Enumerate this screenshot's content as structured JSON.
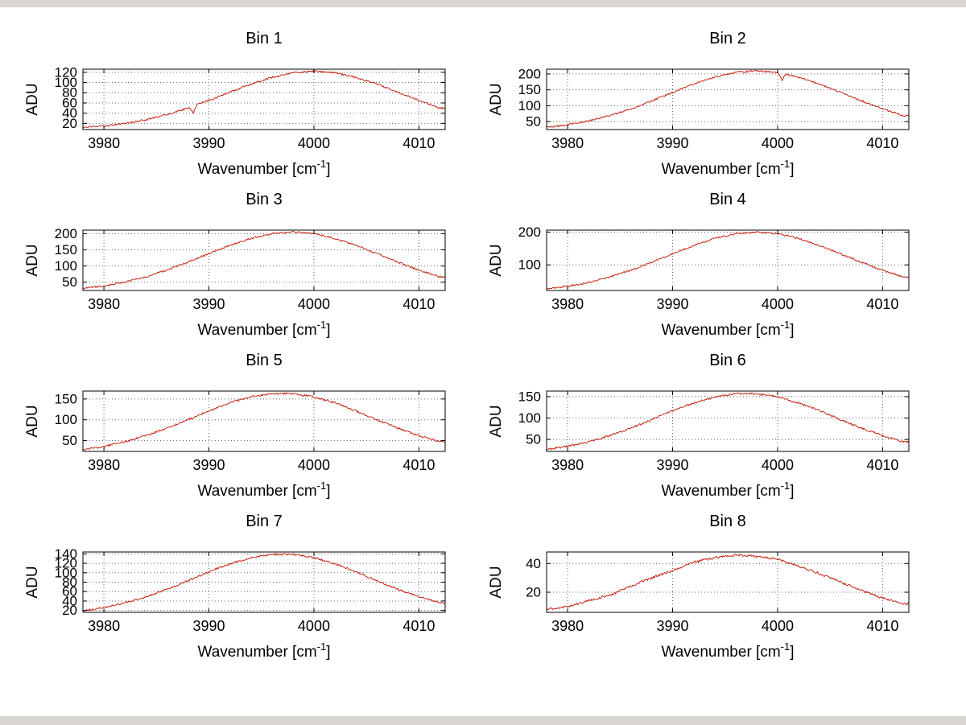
{
  "figure": {
    "background": "#ffffff",
    "chrome_color": "#d8d5d0",
    "grid_color": "#666666",
    "axis_color": "#000000"
  },
  "chart_data": [
    {
      "type": "line",
      "title": "Bin 1",
      "xlabel": "Wavenumber [cm^-1]",
      "ylabel": "ADU",
      "x": [
        3978,
        3980,
        3982,
        3984,
        3986,
        3988,
        3990,
        3992,
        3994,
        3996,
        3998,
        4000,
        4002,
        4004,
        4006,
        4008,
        4010,
        4012
      ],
      "y": [
        12,
        15,
        20,
        27,
        37,
        50,
        65,
        81,
        97,
        110,
        119,
        122,
        119,
        110,
        97,
        81,
        65,
        50
      ],
      "xlim": [
        3978,
        4012.5
      ],
      "ylim": [
        8,
        126
      ],
      "xticks": [
        3980,
        3990,
        4000,
        4010
      ],
      "yticks": [
        20,
        40,
        60,
        80,
        100,
        120
      ],
      "line_color": "#c41200",
      "grid": true,
      "noise_amp": 1.6,
      "spike": {
        "x": 3988.5,
        "depth": 13
      }
    },
    {
      "type": "line",
      "title": "Bin 2",
      "xlabel": "Wavenumber [cm^-1]",
      "ylabel": "ADU",
      "x": [
        3978,
        3980,
        3982,
        3984,
        3986,
        3988,
        3990,
        3992,
        3994,
        3996,
        3998,
        4000,
        4002,
        4004,
        4006,
        4008,
        4010,
        4012
      ],
      "y": [
        32,
        40,
        52,
        69,
        90,
        115,
        142,
        168,
        190,
        205,
        210,
        205,
        190,
        168,
        142,
        115,
        90,
        69
      ],
      "xlim": [
        3978,
        4012.5
      ],
      "ylim": [
        25,
        215
      ],
      "xticks": [
        3980,
        3990,
        4000,
        4010
      ],
      "yticks": [
        50,
        100,
        150,
        200
      ],
      "line_color": "#c41200",
      "grid": true,
      "noise_amp": 2.6,
      "spike": {
        "x": 4000.4,
        "depth": 22
      }
    },
    {
      "type": "line",
      "title": "Bin 3",
      "xlabel": "Wavenumber [cm^-1]",
      "ylabel": "ADU",
      "x": [
        3978,
        3980,
        3982,
        3984,
        3986,
        3988,
        3990,
        3992,
        3994,
        3996,
        3998,
        4000,
        4002,
        4004,
        4006,
        4008,
        4010,
        4012
      ],
      "y": [
        30,
        38,
        50,
        66,
        87,
        112,
        138,
        164,
        185,
        200,
        205,
        200,
        185,
        164,
        138,
        112,
        87,
        66
      ],
      "xlim": [
        3978,
        4012.5
      ],
      "ylim": [
        24,
        211
      ],
      "xticks": [
        3980,
        3990,
        4000,
        4010
      ],
      "yticks": [
        50,
        100,
        150,
        200
      ],
      "line_color": "#c41200",
      "grid": true,
      "noise_amp": 2.6,
      "spike": null
    },
    {
      "type": "line",
      "title": "Bin 4",
      "xlabel": "Wavenumber [cm^-1]",
      "ylabel": "ADU",
      "x": [
        3978,
        3980,
        3982,
        3984,
        3986,
        3988,
        3990,
        3992,
        3994,
        3996,
        3998,
        4000,
        4002,
        4004,
        4006,
        4008,
        4010,
        4012
      ],
      "y": [
        27,
        35,
        46,
        63,
        83,
        108,
        134,
        159,
        181,
        195,
        200,
        195,
        181,
        159,
        134,
        108,
        83,
        63
      ],
      "xlim": [
        3978,
        4012.5
      ],
      "ylim": [
        22,
        206
      ],
      "xticks": [
        3980,
        3990,
        4000,
        4010
      ],
      "yticks": [
        100,
        200
      ],
      "line_color": "#c41200",
      "grid": true,
      "noise_amp": 2.6,
      "spike": null
    },
    {
      "type": "line",
      "title": "Bin 5",
      "xlabel": "Wavenumber [cm^-1]",
      "ylabel": "ADU",
      "x": [
        3978,
        3980,
        3982,
        3984,
        3986,
        3988,
        3990,
        3992,
        3994,
        3996,
        3998,
        4000,
        4002,
        4004,
        4006,
        4008,
        4010,
        4012
      ],
      "y": [
        28,
        36,
        47,
        62,
        80,
        100,
        121,
        141,
        155,
        163,
        163,
        155,
        141,
        121,
        100,
        80,
        62,
        47
      ],
      "xlim": [
        3978,
        4012.5
      ],
      "ylim": [
        24,
        169
      ],
      "xticks": [
        3980,
        3990,
        4000,
        4010
      ],
      "yticks": [
        50,
        100,
        150
      ],
      "line_color": "#c41200",
      "grid": true,
      "noise_amp": 2.2,
      "spike": null
    },
    {
      "type": "line",
      "title": "Bin 6",
      "xlabel": "Wavenumber [cm^-1]",
      "ylabel": "ADU",
      "x": [
        3978,
        3980,
        3982,
        3984,
        3986,
        3988,
        3990,
        3992,
        3994,
        3996,
        3998,
        4000,
        4002,
        4004,
        4006,
        4008,
        4010,
        4012
      ],
      "y": [
        26,
        34,
        44,
        59,
        76,
        96,
        117,
        135,
        149,
        157,
        157,
        149,
        135,
        117,
        96,
        76,
        59,
        44
      ],
      "xlim": [
        3978,
        4012.5
      ],
      "ylim": [
        22,
        163
      ],
      "xticks": [
        3980,
        3990,
        4000,
        4010
      ],
      "yticks": [
        50,
        100,
        150
      ],
      "line_color": "#c41200",
      "grid": true,
      "noise_amp": 2.2,
      "spike": null
    },
    {
      "type": "line",
      "title": "Bin 7",
      "xlabel": "Wavenumber [cm^-1]",
      "ylabel": "ADU",
      "x": [
        3978,
        3980,
        3982,
        3984,
        3986,
        3988,
        3990,
        3992,
        3994,
        3996,
        3998,
        4000,
        4002,
        4004,
        4006,
        4008,
        4010,
        4012
      ],
      "y": [
        19,
        26,
        36,
        49,
        65,
        83,
        102,
        119,
        132,
        139,
        139,
        132,
        119,
        102,
        83,
        65,
        49,
        36
      ],
      "xlim": [
        3978,
        4012.5
      ],
      "ylim": [
        16,
        144
      ],
      "xticks": [
        3980,
        3990,
        4000,
        4010
      ],
      "yticks": [
        20,
        40,
        60,
        80,
        100,
        120,
        140
      ],
      "line_color": "#c41200",
      "grid": true,
      "noise_amp": 2.0,
      "spike": null
    },
    {
      "type": "line",
      "title": "Bin 8",
      "xlabel": "Wavenumber [cm^-1]",
      "ylabel": "ADU",
      "x": [
        3978,
        3980,
        3982,
        3984,
        3986,
        3988,
        3990,
        3992,
        3994,
        3996,
        3998,
        4000,
        4002,
        4004,
        4006,
        4008,
        4010,
        4012
      ],
      "y": [
        8,
        10,
        14,
        18,
        24,
        30,
        35,
        41,
        44,
        46,
        45,
        43,
        38,
        33,
        27,
        21,
        16,
        12
      ],
      "xlim": [
        3978,
        4012.5
      ],
      "ylim": [
        6,
        48
      ],
      "xticks": [
        3980,
        3990,
        4000,
        4010
      ],
      "yticks": [
        20,
        40
      ],
      "line_color": "#c41200",
      "grid": true,
      "noise_amp": 0.8,
      "spike": null
    }
  ]
}
